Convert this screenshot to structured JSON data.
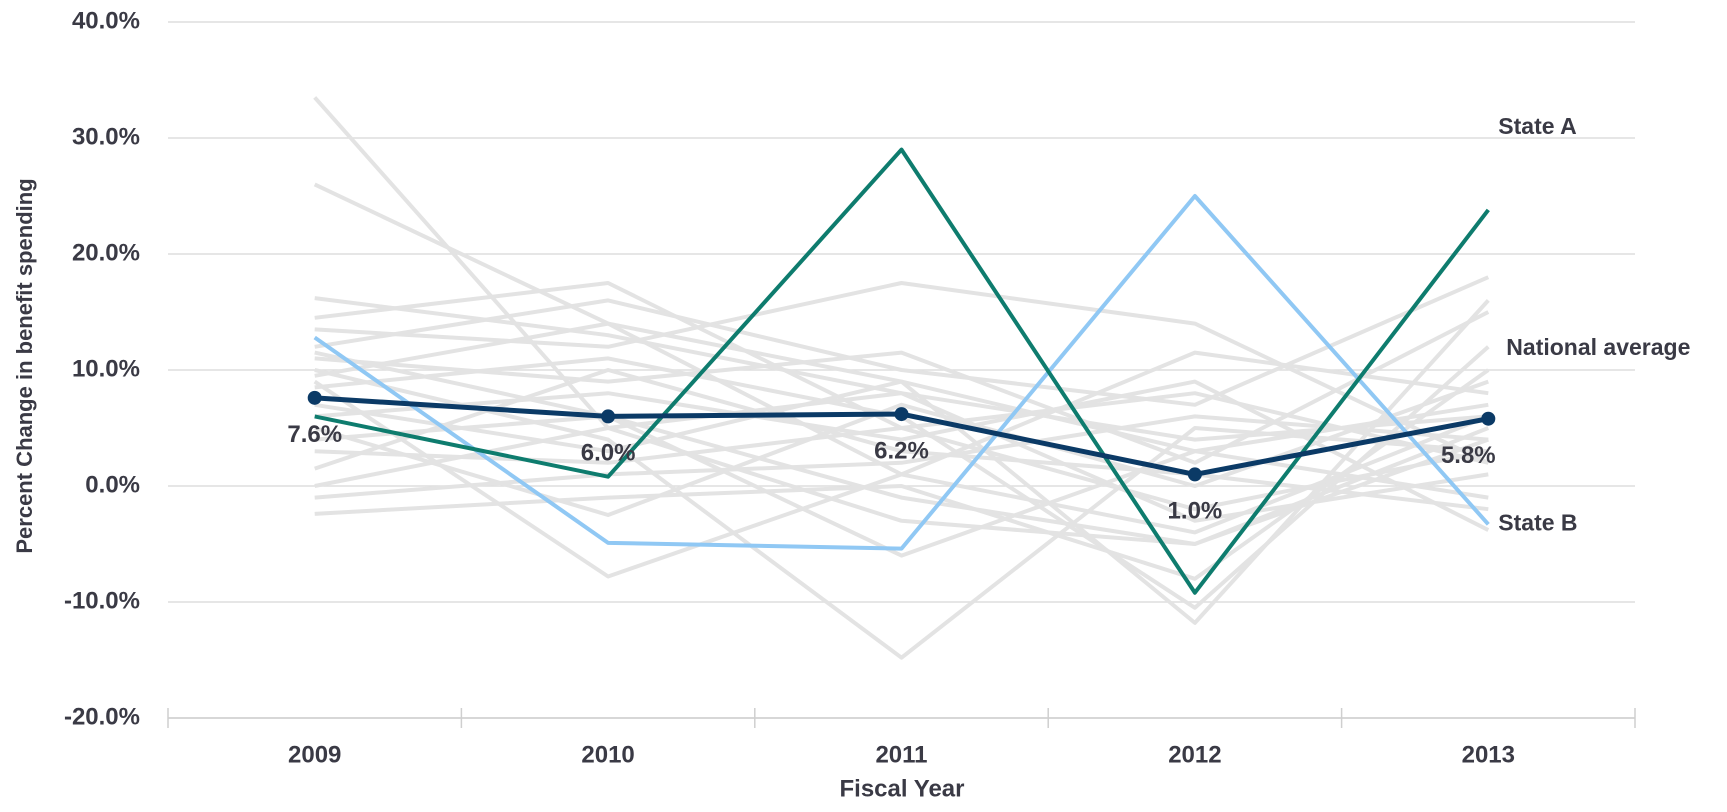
{
  "chart_data": {
    "type": "line",
    "x_label": "Fiscal Year",
    "y_label": "Percent Change in benefit spending",
    "categories": [
      "2009",
      "2010",
      "2011",
      "2012",
      "2013"
    ],
    "ylim": [
      -20,
      40
    ],
    "yticks": [
      {
        "value": -20,
        "label": "-20.0%"
      },
      {
        "value": -10,
        "label": "-10.0%"
      },
      {
        "value": 0,
        "label": "0.0%"
      },
      {
        "value": 10,
        "label": "10.0%"
      },
      {
        "value": 20,
        "label": "20.0%"
      },
      {
        "value": 30,
        "label": "30.0%"
      },
      {
        "value": 40,
        "label": "40.0%"
      }
    ],
    "grid": true,
    "series": [
      {
        "color": "#e3e3e3",
        "values": [
          33.5,
          5,
          -3,
          -5,
          4
        ]
      },
      {
        "color": "#e3e3e3",
        "values": [
          26,
          14,
          9,
          3,
          7
        ]
      },
      {
        "color": "#e3e3e3",
        "values": [
          16.2,
          13,
          8,
          4,
          6
        ]
      },
      {
        "color": "#e3e3e3",
        "values": [
          14.5,
          17.5,
          5,
          -2,
          3
        ]
      },
      {
        "color": "#e3e3e3",
        "values": [
          13.5,
          12,
          17.5,
          14,
          2
        ]
      },
      {
        "color": "#e3e3e3",
        "values": [
          12,
          16,
          10,
          7,
          18
        ]
      },
      {
        "color": "#e3e3e3",
        "values": [
          11,
          9,
          11.5,
          2,
          15
        ]
      },
      {
        "color": "#e3e3e3",
        "values": [
          10,
          4,
          -14.8,
          5,
          3
        ]
      },
      {
        "color": "#e3e3e3",
        "values": [
          9,
          -7.8,
          1,
          11.5,
          8
        ]
      },
      {
        "color": "#e3e3e3",
        "values": [
          8.5,
          11,
          6,
          -10.5,
          12
        ]
      },
      {
        "color": "#e3e3e3",
        "values": [
          7,
          3,
          9,
          -11.8,
          16
        ]
      },
      {
        "color": "#e3e3e3",
        "values": [
          6,
          8,
          4,
          9,
          -3.8
        ]
      },
      {
        "color": "#e3e3e3",
        "values": [
          5,
          -2.5,
          7,
          0,
          9
        ]
      },
      {
        "color": "#e3e3e3",
        "values": [
          4,
          6,
          -1,
          -5,
          5
        ]
      },
      {
        "color": "#e3e3e3",
        "values": [
          3,
          2,
          5,
          8,
          2
        ]
      },
      {
        "color": "#e3e3e3",
        "values": [
          1.5,
          10,
          3,
          1,
          -2
        ]
      },
      {
        "color": "#e3e3e3",
        "values": [
          0,
          5,
          8,
          -3,
          1
        ]
      },
      {
        "color": "#e3e3e3",
        "values": [
          -1,
          1,
          2,
          6,
          4
        ]
      },
      {
        "color": "#e3e3e3",
        "values": [
          -2.4,
          -1,
          0,
          -8,
          10
        ]
      },
      {
        "color": "#e3e3e3",
        "values": [
          11.5,
          6,
          -6,
          3,
          -1
        ]
      },
      {
        "color": "#e3e3e3",
        "values": [
          9.5,
          14,
          1,
          -4,
          6
        ]
      },
      {
        "name": "State B",
        "color": "#90c8f4",
        "values": [
          12.8,
          -4.9,
          -5.4,
          25,
          -3.3
        ]
      },
      {
        "name": "State A",
        "color": "#0e7c6e",
        "values": [
          6,
          0.8,
          29,
          -9.2,
          23.8
        ]
      },
      {
        "name": "National average",
        "color": "#0b3a66",
        "values": [
          7.6,
          6.0,
          6.2,
          1.0,
          5.8
        ],
        "value_labels": [
          "7.6%",
          "6.0%",
          "6.2%",
          "1.0%",
          "5.8%"
        ]
      }
    ]
  }
}
